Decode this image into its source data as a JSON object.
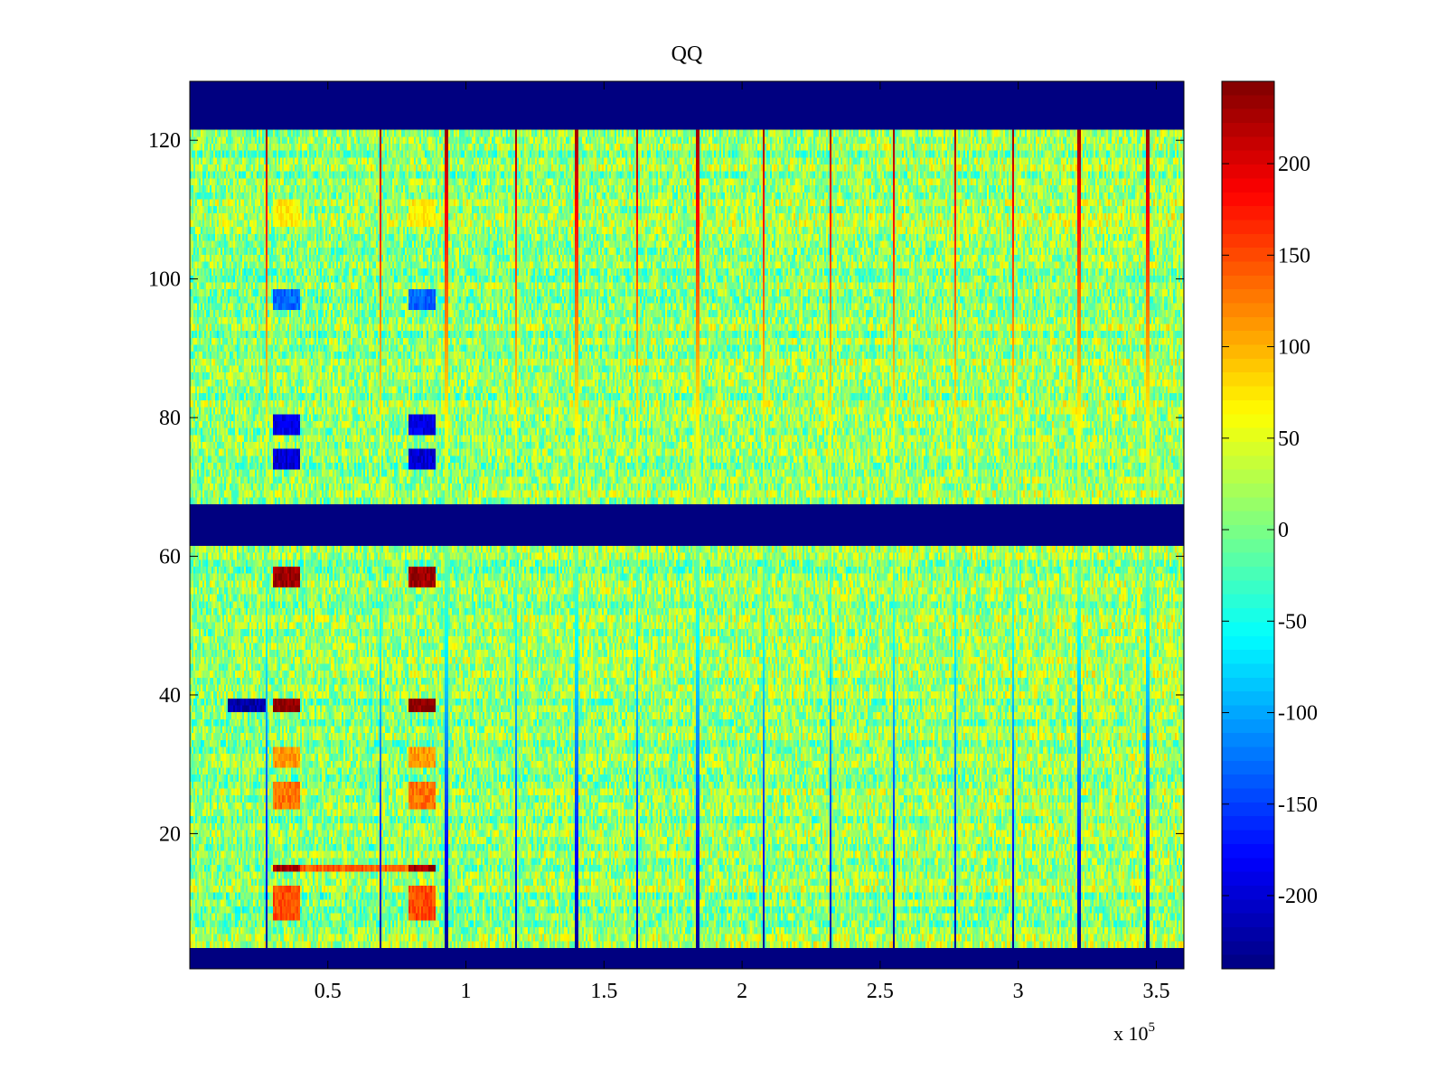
{
  "chart_data": {
    "type": "heatmap",
    "title": "QQ",
    "xlabel": "",
    "ylabel": "",
    "xlim": [
      0,
      3.6
    ],
    "ylim": [
      0.5,
      128.5
    ],
    "x_multiplier_label": "x 10",
    "x_multiplier_exponent": "5",
    "x_ticks": [
      {
        "value": 0.5,
        "label": "0.5"
      },
      {
        "value": 1,
        "label": "1"
      },
      {
        "value": 1.5,
        "label": "1.5"
      },
      {
        "value": 2,
        "label": "2"
      },
      {
        "value": 2.5,
        "label": "2.5"
      },
      {
        "value": 3,
        "label": "3"
      },
      {
        "value": 3.5,
        "label": "3.5"
      }
    ],
    "y_ticks": [
      {
        "value": 20,
        "label": "20"
      },
      {
        "value": 40,
        "label": "40"
      },
      {
        "value": 60,
        "label": "60"
      },
      {
        "value": 80,
        "label": "80"
      },
      {
        "value": 100,
        "label": "100"
      },
      {
        "value": 120,
        "label": "120"
      }
    ],
    "colorbar": {
      "colormap": "jet",
      "range": [
        -240,
        245
      ],
      "ticks": [
        {
          "value": 200,
          "label": "200"
        },
        {
          "value": 150,
          "label": "150"
        },
        {
          "value": 100,
          "label": "100"
        },
        {
          "value": 50,
          "label": "50"
        },
        {
          "value": 0,
          "label": "0"
        },
        {
          "value": -50,
          "label": "-50"
        },
        {
          "value": -100,
          "label": "-100"
        },
        {
          "value": -150,
          "label": "-150"
        },
        {
          "value": -200,
          "label": "-200"
        }
      ]
    },
    "background_value": 5,
    "masked_row_bands": [
      {
        "from": 121.5,
        "to": 128.5,
        "value": -240
      },
      {
        "from": 61.5,
        "to": 67.5,
        "value": -240
      },
      {
        "from": 0.5,
        "to": 3.5,
        "value": -240
      }
    ],
    "vertical_stripes_x": [
      0.28,
      0.69,
      0.93,
      1.18,
      1.4,
      1.62,
      1.84,
      2.08,
      2.32,
      2.55,
      2.77,
      2.98,
      3.22,
      3.47
    ],
    "vertical_stripe_values": {
      "top_edge": 230,
      "bottom_edge": -230
    },
    "feature_blocks": [
      {
        "x": [
          0.3,
          0.4
        ],
        "y": [
          55.5,
          58.5
        ],
        "value": 230
      },
      {
        "x": [
          0.79,
          0.89
        ],
        "y": [
          55.5,
          58.5
        ],
        "value": 230
      },
      {
        "x": [
          0.3,
          0.4
        ],
        "y": [
          38,
          39.5
        ],
        "value": 240
      },
      {
        "x": [
          0.79,
          0.89
        ],
        "y": [
          38,
          39.5
        ],
        "value": 240
      },
      {
        "x": [
          0.14,
          0.28
        ],
        "y": [
          38,
          39.5
        ],
        "value": -220
      },
      {
        "x": [
          0.3,
          0.4
        ],
        "y": [
          14.5,
          15.8
        ],
        "value": 230
      },
      {
        "x": [
          0.79,
          0.89
        ],
        "y": [
          14.5,
          15.8
        ],
        "value": 230
      },
      {
        "x": [
          0.4,
          0.79
        ],
        "y": [
          14.5,
          15.8
        ],
        "value": 140
      },
      {
        "x": [
          0.3,
          0.4
        ],
        "y": [
          72.5,
          75.5
        ],
        "value": -200
      },
      {
        "x": [
          0.79,
          0.89
        ],
        "y": [
          72.5,
          75.5
        ],
        "value": -200
      },
      {
        "x": [
          0.3,
          0.4
        ],
        "y": [
          77.5,
          80.5
        ],
        "value": -190
      },
      {
        "x": [
          0.79,
          0.89
        ],
        "y": [
          77.5,
          80.5
        ],
        "value": -190
      },
      {
        "x": [
          0.3,
          0.4
        ],
        "y": [
          96,
          98
        ],
        "value": -130
      },
      {
        "x": [
          0.79,
          0.89
        ],
        "y": [
          96,
          98
        ],
        "value": -130
      },
      {
        "x": [
          0.3,
          0.4
        ],
        "y": [
          108,
          111
        ],
        "value": 70
      },
      {
        "x": [
          0.79,
          0.89
        ],
        "y": [
          108,
          111
        ],
        "value": 70
      },
      {
        "x": [
          0.3,
          0.4
        ],
        "y": [
          7.5,
          12.5
        ],
        "value": 150
      },
      {
        "x": [
          0.79,
          0.89
        ],
        "y": [
          7.5,
          12.5
        ],
        "value": 150
      },
      {
        "x": [
          0.3,
          0.4
        ],
        "y": [
          23.5,
          27.5
        ],
        "value": 130
      },
      {
        "x": [
          0.79,
          0.89
        ],
        "y": [
          23.5,
          27.5
        ],
        "value": 130
      },
      {
        "x": [
          0.3,
          0.4
        ],
        "y": [
          30,
          32.5
        ],
        "value": 110
      },
      {
        "x": [
          0.79,
          0.89
        ],
        "y": [
          30,
          32.5
        ],
        "value": 110
      }
    ]
  }
}
